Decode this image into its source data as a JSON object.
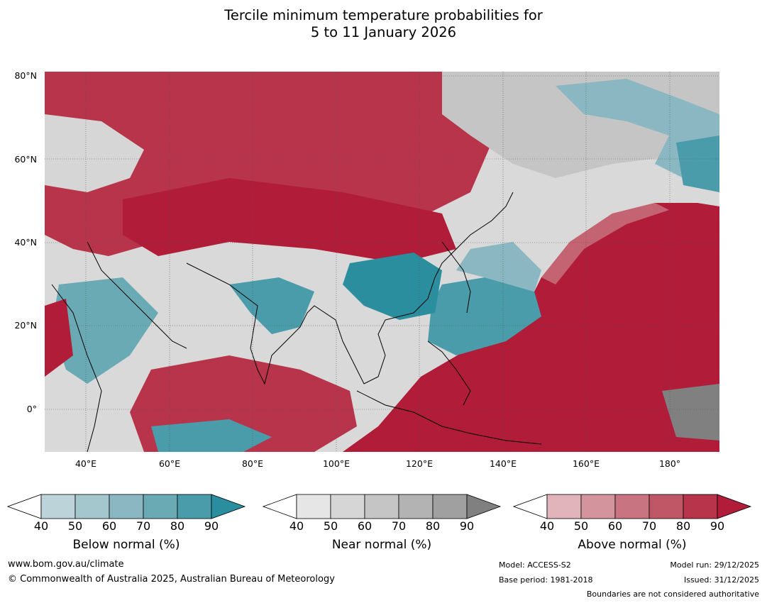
{
  "title": {
    "line1": "Tercile minimum temperature probabilities for",
    "line2": "5 to 11 January 2026"
  },
  "map": {
    "lat_labels": [
      "80°N",
      "60°N",
      "40°N",
      "20°N",
      "0°"
    ],
    "lon_labels": [
      "40°E",
      "60°E",
      "80°E",
      "100°E",
      "120°E",
      "140°E",
      "160°E",
      "180°"
    ],
    "extent": {
      "lon_min": 30,
      "lon_max": 192,
      "lat_min": -10,
      "lat_max": 81
    }
  },
  "legend": {
    "below": {
      "title": "Below normal (%)",
      "ticks": [
        "40",
        "50",
        "60",
        "70",
        "80",
        "90"
      ],
      "colors": [
        "#ffffff",
        "#bdd3da",
        "#a4c6cd",
        "#8ab7c2",
        "#6aaab5",
        "#4a9caa",
        "#2b8e9f"
      ]
    },
    "near": {
      "title": "Near normal (%)",
      "ticks": [
        "40",
        "50",
        "60",
        "70",
        "80",
        "90"
      ],
      "colors": [
        "#ffffff",
        "#e6e6e6",
        "#d6d6d6",
        "#c5c5c5",
        "#b3b3b3",
        "#a0a0a0",
        "#808080"
      ]
    },
    "above": {
      "title": "Above normal (%)",
      "ticks": [
        "40",
        "50",
        "60",
        "70",
        "80",
        "90"
      ],
      "colors": [
        "#ffffff",
        "#e0b4ba",
        "#d4949d",
        "#c97581",
        "#c05767",
        "#b8344a",
        "#b11c38"
      ]
    }
  },
  "footer": {
    "website": "www.bom.gov.au/climate",
    "copyright": "© Commonwealth of Australia 2025, Australian Bureau of Meteorology",
    "model": "Model: ACCESS-S2",
    "base_period": "Base period: 1981-2018",
    "model_run": "Model run: 29/12/2025",
    "issued": "Issued: 31/12/2025",
    "boundaries": "Boundaries are not considered authoritative"
  }
}
